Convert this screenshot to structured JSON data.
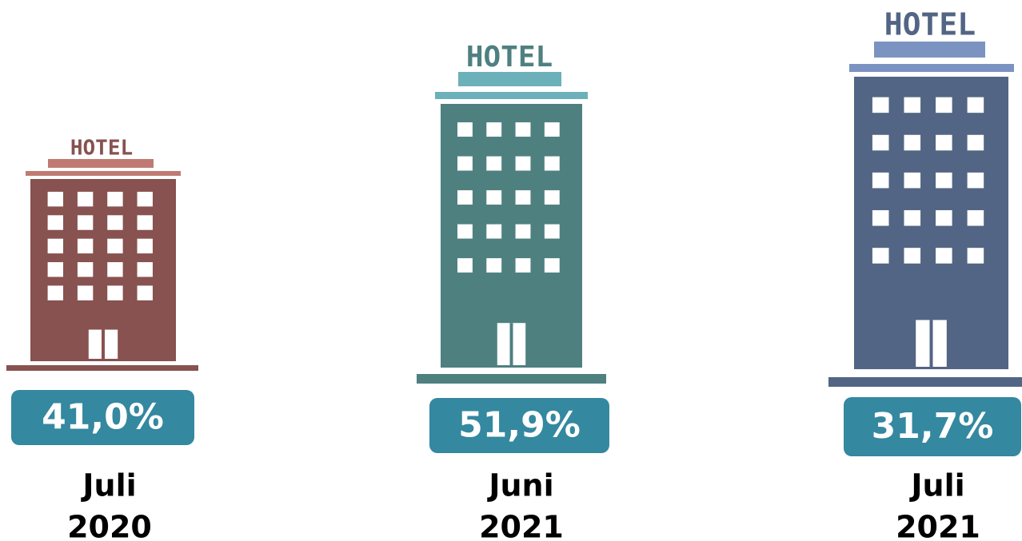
{
  "items": [
    {
      "sign": "HOTEL",
      "value": "41,0%",
      "period": [
        "Juli",
        "2020"
      ]
    },
    {
      "sign": "HOTEL",
      "value": "51,9%",
      "period": [
        "Juni",
        "2021"
      ]
    },
    {
      "sign": "HOTEL",
      "value": "31,7%",
      "period": [
        "Juli",
        "2021"
      ]
    }
  ]
}
